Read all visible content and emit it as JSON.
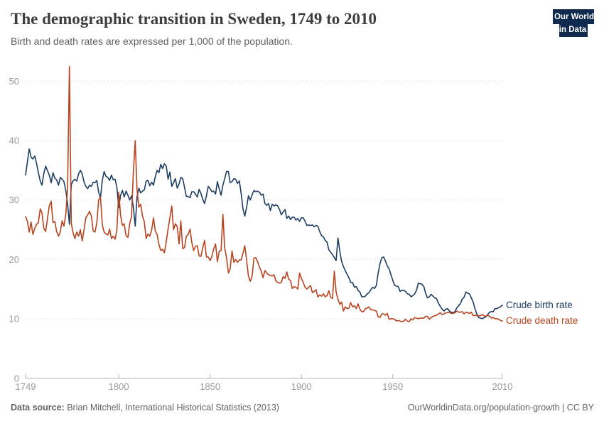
{
  "header": {
    "title": "The demographic transition in Sweden, 1749 to 2010",
    "subtitle": "Birth and death rates are expressed per 1,000 of the population.",
    "logo": {
      "line1": "Our World",
      "line2": "in Data",
      "bg_color": "#0f2a4e",
      "bar_color": "#d8352a"
    }
  },
  "legend": {
    "birth_label": "Crude birth rate",
    "death_label": "Crude death rate"
  },
  "footer": {
    "source_prefix": "Data source:",
    "source_text": " Brian Mitchell, International Historical Statistics (2013)",
    "credit": "OurWorldinData.org/population-growth | CC BY"
  },
  "colors": {
    "birth": "#1d3d63",
    "death": "#b8431f",
    "grid": "#e4e4e4",
    "axis": "#b5b5b5",
    "tick_label": "#999999",
    "title": "#3d3d3d",
    "subtitle": "#5f5f5f",
    "footer": "#636363"
  },
  "chart_data": {
    "type": "line",
    "title": "The demographic transition in Sweden, 1749 to 2010",
    "subtitle": "Birth and death rates are expressed per 1,000 of the population.",
    "xlabel": "",
    "ylabel": "",
    "grid": "horizontal dashed",
    "legend_position": "labels at right end of lines",
    "xlim": [
      1749,
      2010
    ],
    "ylim": [
      0,
      53
    ],
    "x_ticks": [
      1749,
      1800,
      1850,
      1900,
      1950,
      2010
    ],
    "y_ticks": [
      0,
      10,
      20,
      30,
      40,
      50
    ],
    "years": [
      1749,
      1750,
      1751,
      1752,
      1753,
      1754,
      1755,
      1756,
      1757,
      1758,
      1759,
      1760,
      1761,
      1762,
      1763,
      1764,
      1765,
      1766,
      1767,
      1768,
      1769,
      1770,
      1771,
      1772,
      1773,
      1774,
      1775,
      1776,
      1777,
      1778,
      1779,
      1780,
      1781,
      1782,
      1783,
      1784,
      1785,
      1786,
      1787,
      1788,
      1789,
      1790,
      1791,
      1792,
      1793,
      1794,
      1795,
      1796,
      1797,
      1798,
      1799,
      1800,
      1801,
      1802,
      1803,
      1804,
      1805,
      1806,
      1807,
      1808,
      1809,
      1810,
      1811,
      1812,
      1813,
      1814,
      1815,
      1816,
      1817,
      1818,
      1819,
      1820,
      1821,
      1822,
      1823,
      1824,
      1825,
      1826,
      1827,
      1828,
      1829,
      1830,
      1831,
      1832,
      1833,
      1834,
      1835,
      1836,
      1837,
      1838,
      1839,
      1840,
      1841,
      1842,
      1843,
      1844,
      1845,
      1846,
      1847,
      1848,
      1849,
      1850,
      1851,
      1852,
      1853,
      1854,
      1855,
      1856,
      1857,
      1858,
      1859,
      1860,
      1861,
      1862,
      1863,
      1864,
      1865,
      1866,
      1867,
      1868,
      1869,
      1870,
      1871,
      1872,
      1873,
      1874,
      1875,
      1876,
      1877,
      1878,
      1879,
      1880,
      1881,
      1882,
      1883,
      1884,
      1885,
      1886,
      1887,
      1888,
      1889,
      1890,
      1891,
      1892,
      1893,
      1894,
      1895,
      1896,
      1897,
      1898,
      1899,
      1900,
      1901,
      1902,
      1903,
      1904,
      1905,
      1906,
      1907,
      1908,
      1909,
      1910,
      1911,
      1912,
      1913,
      1914,
      1915,
      1916,
      1917,
      1918,
      1919,
      1920,
      1921,
      1922,
      1923,
      1924,
      1925,
      1926,
      1927,
      1928,
      1929,
      1930,
      1931,
      1932,
      1933,
      1934,
      1935,
      1936,
      1937,
      1938,
      1939,
      1940,
      1941,
      1942,
      1943,
      1944,
      1945,
      1946,
      1947,
      1948,
      1949,
      1950,
      1951,
      1952,
      1953,
      1954,
      1955,
      1956,
      1957,
      1958,
      1959,
      1960,
      1961,
      1962,
      1963,
      1964,
      1965,
      1966,
      1967,
      1968,
      1969,
      1970,
      1971,
      1972,
      1973,
      1974,
      1975,
      1976,
      1977,
      1978,
      1979,
      1980,
      1981,
      1982,
      1983,
      1984,
      1985,
      1986,
      1987,
      1988,
      1989,
      1990,
      1991,
      1992,
      1993,
      1994,
      1995,
      1996,
      1997,
      1998,
      1999,
      2000,
      2001,
      2002,
      2003,
      2004,
      2005,
      2006,
      2007,
      2008,
      2009,
      2010
    ],
    "series": [
      {
        "name": "Crude birth rate",
        "color": "#1d3d63",
        "values": [
          34.2,
          36.5,
          38.6,
          37.2,
          36.9,
          37.4,
          36.2,
          34.6,
          33.2,
          32.5,
          34.5,
          35.7,
          34.9,
          34.2,
          32.9,
          34.6,
          33.7,
          33.4,
          32.5,
          33.8,
          33.5,
          33.1,
          31.6,
          29.4,
          25.9,
          32.6,
          33.2,
          33.5,
          33.2,
          34.4,
          35.0,
          34.4,
          33.0,
          32.3,
          31.9,
          32.5,
          32.3,
          33.0,
          32.9,
          33.3,
          31.3,
          30.4,
          33.3,
          34.8,
          34.0,
          33.8,
          33.3,
          34.2,
          33.4,
          33.5,
          32.1,
          28.7,
          30.8,
          31.6,
          30.5,
          31.5,
          30.8,
          30.0,
          30.7,
          28.8,
          25.6,
          30.5,
          32.0,
          31.2,
          31.5,
          31.7,
          33.2,
          33.3,
          32.4,
          33.0,
          32.5,
          33.9,
          35.0,
          34.6,
          36.0,
          35.3,
          36.1,
          35.7,
          33.5,
          34.7,
          32.3,
          32.9,
          33.6,
          32.0,
          32.7,
          33.8,
          33.6,
          32.1,
          30.6,
          30.6,
          30.4,
          31.4,
          31.4,
          31.0,
          30.5,
          31.8,
          31.1,
          30.1,
          29.4,
          30.7,
          32.3,
          31.9,
          31.4,
          31.5,
          31.0,
          33.1,
          31.9,
          30.8,
          32.5,
          33.6,
          34.8,
          34.8,
          32.9,
          33.1,
          33.6,
          33.5,
          32.8,
          33.2,
          31.1,
          28.5,
          27.3,
          28.8,
          30.7,
          30.0,
          30.9,
          31.6,
          31.4,
          31.5,
          31.3,
          30.8,
          31.0,
          29.4,
          29.1,
          29.4,
          28.2,
          29.3,
          29.0,
          29.2,
          29.0,
          28.4,
          27.5,
          28.0,
          28.4,
          26.9,
          27.3,
          26.7,
          27.1,
          27.1,
          26.6,
          26.9,
          26.4,
          27.0,
          27.0,
          26.4,
          25.7,
          25.8,
          25.7,
          25.8,
          25.5,
          25.7,
          25.6,
          24.7,
          24.0,
          23.8,
          23.2,
          22.9,
          21.6,
          21.2,
          20.8,
          20.3,
          19.8,
          23.6,
          21.4,
          19.6,
          18.8,
          18.1,
          17.5,
          16.9,
          16.1,
          16.1,
          15.3,
          15.4,
          14.8,
          14.5,
          13.7,
          13.7,
          13.8,
          14.2,
          14.4,
          14.9,
          15.3,
          15.1,
          15.6,
          17.7,
          19.3,
          20.3,
          20.4,
          19.7,
          18.9,
          18.4,
          17.4,
          16.5,
          15.6,
          15.5,
          15.4,
          14.6,
          14.8,
          14.8,
          14.6,
          14.2,
          14.1,
          13.7,
          13.9,
          14.2,
          14.8,
          16.0,
          15.9,
          15.8,
          15.4,
          14.3,
          13.5,
          13.7,
          14.1,
          13.8,
          13.5,
          13.4,
          12.6,
          12.1,
          11.6,
          11.3,
          11.6,
          11.7,
          11.3,
          11.1,
          11.0,
          11.2,
          11.8,
          12.2,
          12.5,
          13.3,
          13.6,
          14.5,
          14.3,
          14.2,
          13.5,
          12.8,
          11.7,
          10.8,
          10.2,
          10.1,
          10.0,
          10.2,
          10.3,
          10.7,
          11.1,
          11.2,
          11.2,
          11.7,
          11.7,
          11.9,
          12.0,
          12.3
        ]
      },
      {
        "name": "Crude death rate",
        "color": "#b8431f",
        "values": [
          27.2,
          26.4,
          24.6,
          26.3,
          24.2,
          25.2,
          25.9,
          26.2,
          28.5,
          27.8,
          25.2,
          24.7,
          27.0,
          29.0,
          29.8,
          26.2,
          26.4,
          24.7,
          23.9,
          24.6,
          26.5,
          25.6,
          27.6,
          32.0,
          52.5,
          26.1,
          24.5,
          23.5,
          24.6,
          23.9,
          25.0,
          23.1,
          25.0,
          27.0,
          27.5,
          28.1,
          27.3,
          24.8,
          24.6,
          26.2,
          30.0,
          30.5,
          25.8,
          24.6,
          24.3,
          24.1,
          25.1,
          23.5,
          23.9,
          23.4,
          25.0,
          31.3,
          27.4,
          25.7,
          26.0,
          24.0,
          23.7,
          26.0,
          27.2,
          34.8,
          40.0,
          31.8,
          28.8,
          29.3,
          27.3,
          26.3,
          23.5,
          24.3,
          23.9,
          24.9,
          27.0,
          24.8,
          24.2,
          22.5,
          21.5,
          21.7,
          21.1,
          23.0,
          25.1,
          27.0,
          29.0,
          25.0,
          26.0,
          25.5,
          22.6,
          26.5,
          21.8,
          22.0,
          23.9,
          24.2,
          25.1,
          22.8,
          21.5,
          22.2,
          22.3,
          20.6,
          20.5,
          22.0,
          23.2,
          20.4,
          20.4,
          19.8,
          20.5,
          21.8,
          22.6,
          19.6,
          21.4,
          21.5,
          27.6,
          21.9,
          20.3,
          17.7,
          18.4,
          21.4,
          19.5,
          20.0,
          19.5,
          19.9,
          19.9,
          21.0,
          22.3,
          19.8,
          17.2,
          16.3,
          17.2,
          20.2,
          20.3,
          19.6,
          18.7,
          18.0,
          16.9,
          18.1,
          17.7,
          17.4,
          17.3,
          17.2,
          17.4,
          16.4,
          16.1,
          16.0,
          16.1,
          17.1,
          16.8,
          17.9,
          16.7,
          16.4,
          15.1,
          15.4,
          15.3,
          15.0,
          17.7,
          16.8,
          16.1,
          15.3,
          15.0,
          15.3,
          15.6,
          14.4,
          14.6,
          14.9,
          13.7,
          14.0,
          13.8,
          14.2,
          13.7,
          13.9,
          14.7,
          13.6,
          13.4,
          18.0,
          14.5,
          13.3,
          12.4,
          12.8,
          11.3,
          12.0,
          11.7,
          11.8,
          12.7,
          12.0,
          12.2,
          11.7,
          12.5,
          11.6,
          11.2,
          11.2,
          11.7,
          11.8,
          12.0,
          11.5,
          11.5,
          11.4,
          11.3,
          10.3,
          10.2,
          10.8,
          10.8,
          10.6,
          10.9,
          9.9,
          10.0,
          10.0,
          9.9,
          9.6,
          9.7,
          9.6,
          9.5,
          9.6,
          9.9,
          9.6,
          9.5,
          10.0,
          9.8,
          10.2,
          10.1,
          10.0,
          10.1,
          10.1,
          10.1,
          10.4,
          10.4,
          9.9,
          10.2,
          10.4,
          10.5,
          10.6,
          10.8,
          11.0,
          10.7,
          10.8,
          11.0,
          11.0,
          11.1,
          10.9,
          10.9,
          11.0,
          11.3,
          11.1,
          11.1,
          11.2,
          10.8,
          11.1,
          11.0,
          10.9,
          11.1,
          10.5,
          10.6,
          10.5,
          10.5,
          10.5,
          10.7,
          10.5,
          10.4,
          10.6,
          10.4,
          10.1,
          10.2,
          10.0,
          10.0,
          9.9,
          9.7,
          9.6
        ]
      }
    ]
  }
}
